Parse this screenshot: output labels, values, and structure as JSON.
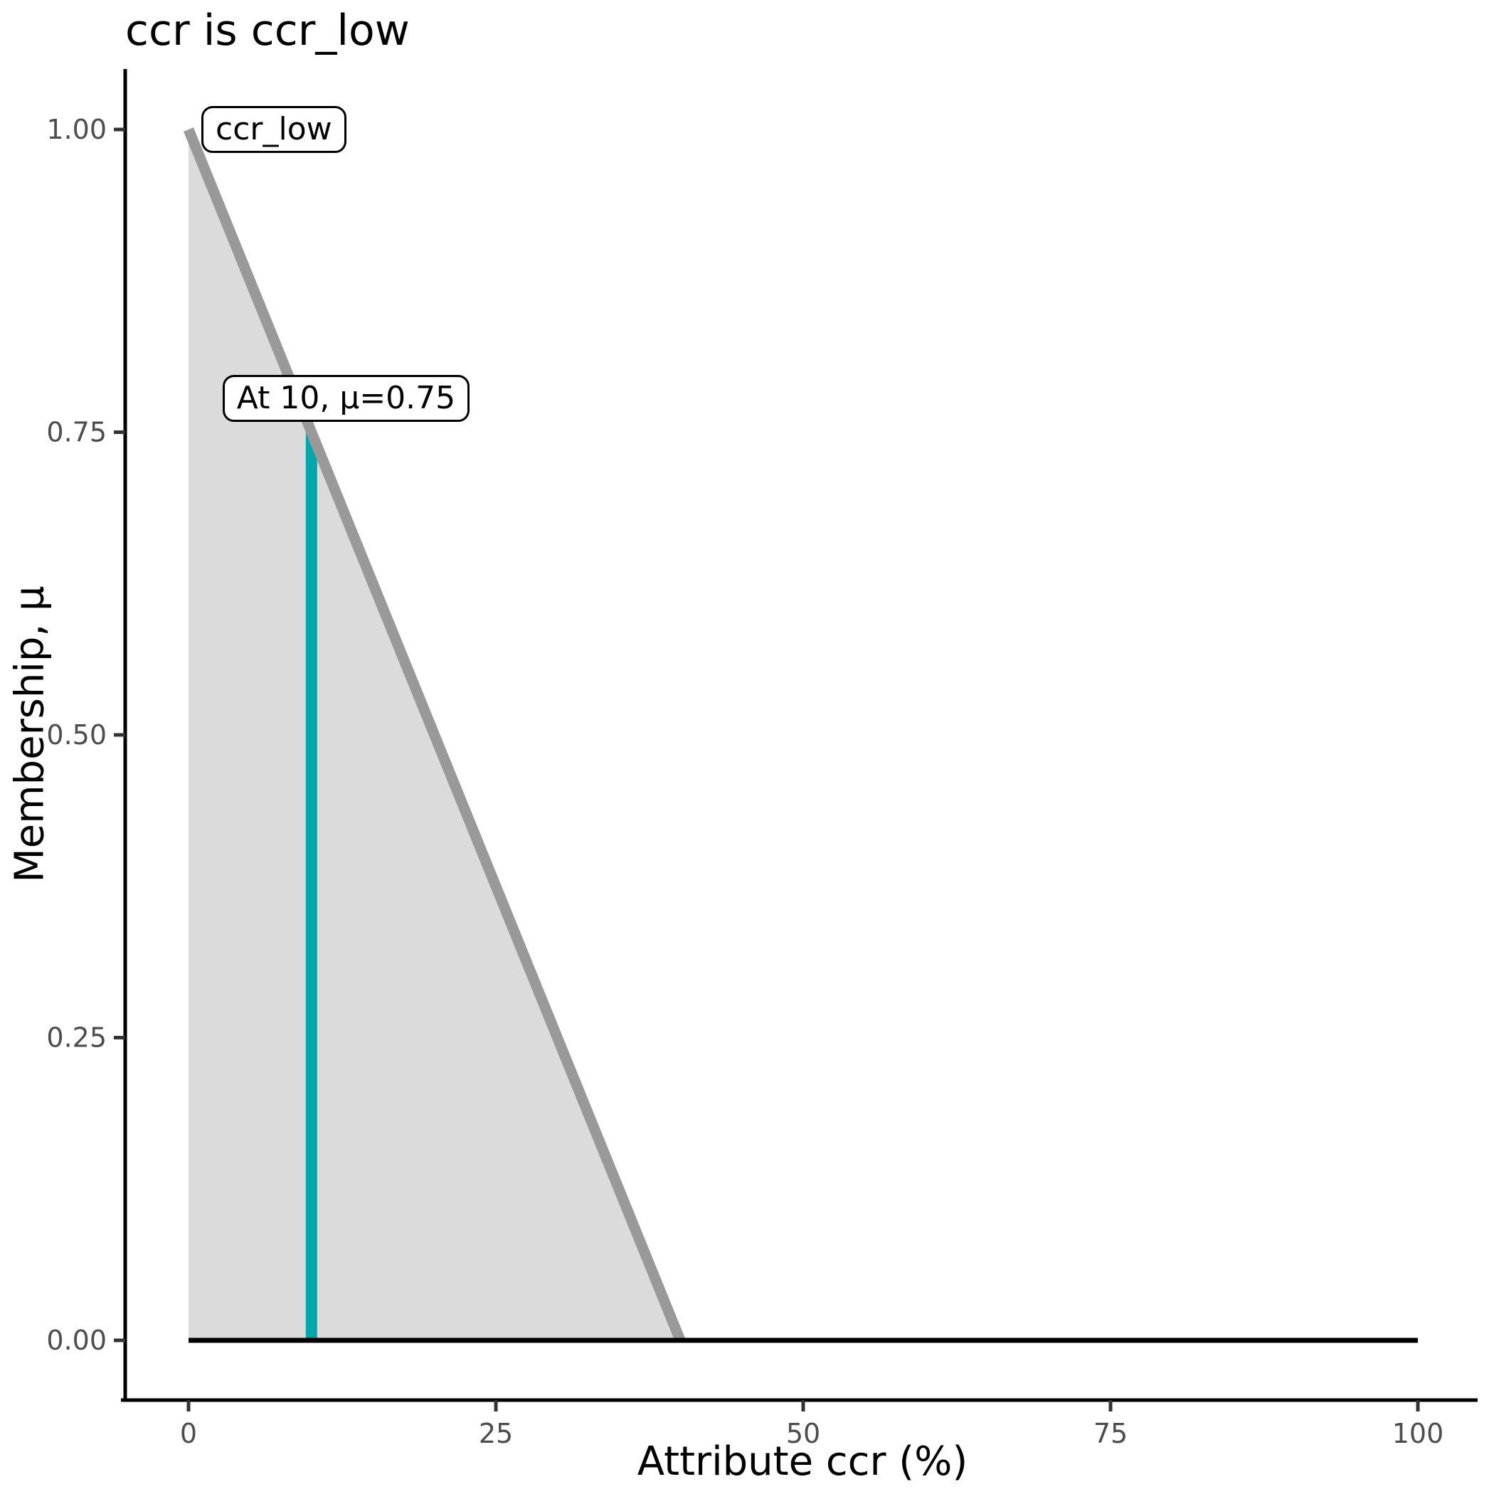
{
  "chart_data": {
    "type": "area",
    "title": "ccr is ccr_low",
    "xlabel": "Attribute ccr (%)",
    "ylabel": "Membership, μ",
    "xlim": [
      0,
      100
    ],
    "ylim": [
      0,
      1
    ],
    "grid": false,
    "legend": "none",
    "x_ticks": [
      {
        "value": 0,
        "label": "0"
      },
      {
        "value": 25,
        "label": "25"
      },
      {
        "value": 50,
        "label": "50"
      },
      {
        "value": 75,
        "label": "75"
      },
      {
        "value": 100,
        "label": "100"
      }
    ],
    "y_ticks": [
      {
        "value": 0,
        "label": "0.00"
      },
      {
        "value": 0.25,
        "label": "0.25"
      },
      {
        "value": 0.5,
        "label": "0.50"
      },
      {
        "value": 0.75,
        "label": "0.75"
      },
      {
        "value": 1,
        "label": "1.00"
      }
    ],
    "series": [
      {
        "name": "membership-function",
        "color": "#999999",
        "points": [
          [
            0,
            1
          ],
          [
            40,
            0
          ]
        ]
      },
      {
        "name": "zero-baseline",
        "color": "#000000",
        "points": [
          [
            0,
            0
          ],
          [
            100,
            0
          ]
        ]
      }
    ],
    "fill_region": {
      "color": "#dbdbdb",
      "points": [
        [
          0,
          1
        ],
        [
          40,
          0
        ],
        [
          0,
          0
        ]
      ]
    },
    "marker_line": {
      "x": 10,
      "mu": 0.75,
      "color": "#00a8ac",
      "label": "At 10, μ=0.75"
    },
    "set_label": {
      "text": "ccr_low",
      "anchor_x": 0,
      "anchor_mu": 1
    },
    "colors": {
      "axis": "#000000",
      "ticks": "#333333",
      "tick_text": "#4d4d4d",
      "title_text": "#000000"
    }
  }
}
